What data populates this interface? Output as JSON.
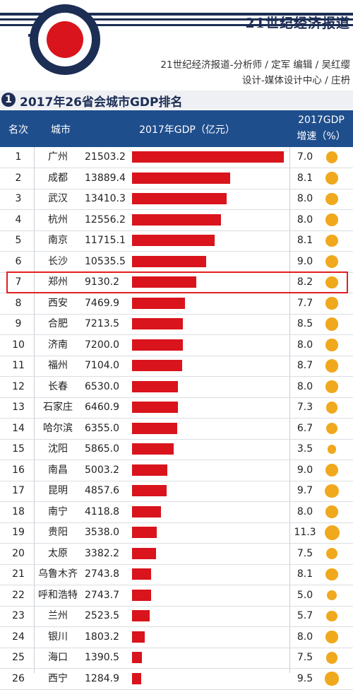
{
  "header": {
    "brand": "21世纪经济报道",
    "credit_line1": "21世纪经济报道-分析师 / 定军   编辑 / 吴红缨",
    "credit_line2": "设计-媒体设计中心 / 庄枬",
    "title_number": "1",
    "title": "2017年26省会城市GDP排名",
    "colors": {
      "navy": "#1d2e55",
      "table_header": "#1f4e8c",
      "bar": "#d9141c",
      "dot": "#f0a81c",
      "highlight": "#e02020"
    }
  },
  "table": {
    "col_rank": "名次",
    "col_city": "城市",
    "col_gdp": "2017年GDP（亿元）",
    "col_growth_1": "2017GDP",
    "col_growth_2": "增速（%）",
    "highlighted_rank": 7
  },
  "chart_data": {
    "type": "bar",
    "title": "2017年26省会城市GDP排名",
    "value_unit": "亿元",
    "categories": [
      "广州",
      "成都",
      "武汉",
      "杭州",
      "南京",
      "长沙",
      "郑州",
      "西安",
      "合肥",
      "济南",
      "福州",
      "长春",
      "石家庄",
      "哈尔滨",
      "沈阳",
      "南昌",
      "昆明",
      "南宁",
      "贵阳",
      "太原",
      "乌鲁木齐",
      "呼和浩特",
      "兰州",
      "银川",
      "海口",
      "西宁"
    ],
    "ranks": [
      "1",
      "2",
      "3",
      "4",
      "5",
      "6",
      "7",
      "8",
      "9",
      "10",
      "11",
      "12",
      "13",
      "14",
      "15",
      "16",
      "17",
      "18",
      "19",
      "20",
      "21",
      "22",
      "23",
      "24",
      "25",
      "26"
    ],
    "values": [
      21503.2,
      13889.4,
      13410.3,
      12556.2,
      11715.1,
      10535.5,
      9130.2,
      7469.9,
      7213.5,
      7200.0,
      7104.0,
      6530.0,
      6460.9,
      6355.0,
      5865.0,
      5003.2,
      4857.6,
      4118.8,
      3538.0,
      3382.2,
      2743.8,
      2743.7,
      2523.5,
      1803.2,
      1390.5,
      1284.9
    ],
    "value_labels": [
      "21503.2",
      "13889.4",
      "13410.3",
      "12556.2",
      "11715.1",
      "10535.5",
      "9130.2",
      "7469.9",
      "7213.5",
      "7200.0",
      "7104.0",
      "6530.0",
      "6460.9",
      "6355.0",
      "5865.0",
      "5003.2",
      "4857.6",
      "4118.8",
      "3538.0",
      "3382.2",
      "2743.8",
      "2743.7",
      "2523.5",
      "1803.2",
      "1390.5",
      "1284.9"
    ],
    "growth": [
      7.0,
      8.1,
      8.0,
      8.0,
      8.1,
      9.0,
      8.2,
      7.7,
      8.5,
      8.0,
      8.7,
      8.0,
      7.3,
      6.7,
      3.5,
      9.0,
      9.7,
      8.0,
      11.3,
      7.5,
      8.1,
      5.0,
      5.7,
      8.0,
      7.5,
      9.5
    ],
    "growth_labels": [
      "7.0",
      "8.1",
      "8.0",
      "8.0",
      "8.1",
      "9.0",
      "8.2",
      "7.7",
      "8.5",
      "8.0",
      "8.7",
      "8.0",
      "7.3",
      "6.7",
      "3.5",
      "9.0",
      "9.7",
      "8.0",
      "11.3",
      "7.5",
      "8.1",
      "5.0",
      "5.7",
      "8.0",
      "7.5",
      "9.5"
    ]
  }
}
